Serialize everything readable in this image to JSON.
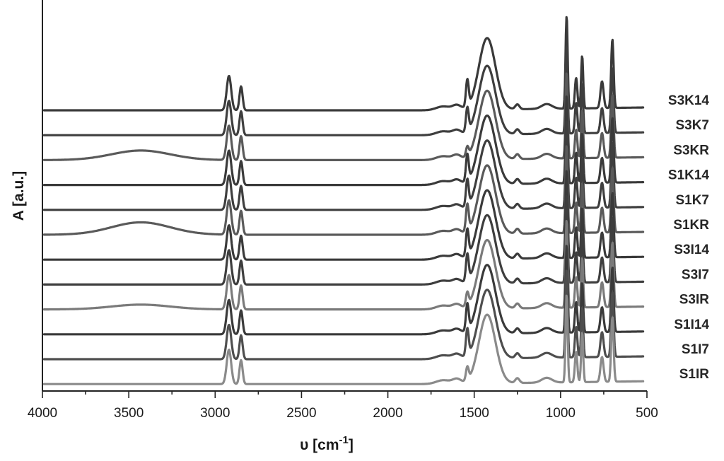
{
  "chart_data": {
    "type": "line",
    "xlabel": "υ [cm",
    "xlabel_sup": "-1",
    "xlabel_suffix": "]",
    "ylabel": "A [a.u.]",
    "xlim": [
      4000,
      500
    ],
    "x_reversed": true,
    "xticks": [
      4000,
      3500,
      3000,
      2500,
      2000,
      1500,
      1000,
      500
    ],
    "xtick_labels": [
      "4000",
      "3500",
      "3000",
      "2500",
      "2000",
      "1500",
      "1000",
      "500"
    ],
    "y_ticks_shown": false,
    "grid": false,
    "legend": "series labels at right end of each trace",
    "peaks_cm-1": [
      2920,
      2850,
      1540,
      1425,
      965,
      910,
      875,
      760,
      700
    ],
    "series": [
      {
        "name": "S3K14",
        "color": "#3a3a3a",
        "peak_intensities": [
          0.36,
          0.25,
          0.28,
          0.75,
          0.97,
          0.32,
          0.55,
          0.28,
          0.72
        ],
        "broad_3400": 0.0
      },
      {
        "name": "S3K7",
        "color": "#3e3e3e",
        "peak_intensities": [
          0.36,
          0.25,
          0.25,
          0.72,
          0.92,
          0.32,
          0.52,
          0.26,
          0.68
        ],
        "broad_3400": 0.0
      },
      {
        "name": "S3KR",
        "color": "#5a5a5a",
        "peak_intensities": [
          0.36,
          0.25,
          0.1,
          0.72,
          0.9,
          0.3,
          0.5,
          0.26,
          0.66
        ],
        "broad_3400": 0.1
      },
      {
        "name": "S1K14",
        "color": "#3a3a3a",
        "peak_intensities": [
          0.36,
          0.25,
          0.28,
          0.72,
          0.92,
          0.32,
          0.52,
          0.26,
          0.68
        ],
        "broad_3400": 0.0
      },
      {
        "name": "S1K7",
        "color": "#3e3e3e",
        "peak_intensities": [
          0.36,
          0.25,
          0.28,
          0.72,
          0.92,
          0.32,
          0.52,
          0.26,
          0.68
        ],
        "broad_3400": 0.0
      },
      {
        "name": "S1KR",
        "color": "#5a5a5a",
        "peak_intensities": [
          0.36,
          0.25,
          0.28,
          0.72,
          0.92,
          0.32,
          0.52,
          0.26,
          0.68
        ],
        "broad_3400": 0.13
      },
      {
        "name": "S3I14",
        "color": "#3a3a3a",
        "peak_intensities": [
          0.36,
          0.25,
          0.28,
          0.72,
          0.92,
          0.32,
          0.52,
          0.26,
          0.68
        ],
        "broad_3400": 0.0
      },
      {
        "name": "S3I7",
        "color": "#3e3e3e",
        "peak_intensities": [
          0.36,
          0.25,
          0.28,
          0.72,
          0.92,
          0.32,
          0.52,
          0.26,
          0.68
        ],
        "broad_3400": 0.0
      },
      {
        "name": "S3IR",
        "color": "#7a7a7a",
        "peak_intensities": [
          0.36,
          0.25,
          0.14,
          0.72,
          0.92,
          0.32,
          0.52,
          0.26,
          0.68
        ],
        "broad_3400": 0.05
      },
      {
        "name": "S1I14",
        "color": "#3a3a3a",
        "peak_intensities": [
          0.36,
          0.25,
          0.28,
          0.72,
          0.92,
          0.32,
          0.52,
          0.26,
          0.68
        ],
        "broad_3400": 0.0
      },
      {
        "name": "S1I7",
        "color": "#4e4e4e",
        "peak_intensities": [
          0.36,
          0.25,
          0.28,
          0.72,
          0.92,
          0.32,
          0.52,
          0.26,
          0.68
        ],
        "broad_3400": 0.0
      },
      {
        "name": "S1IR",
        "color": "#8a8a8a",
        "peak_intensities": [
          0.36,
          0.25,
          0.14,
          0.72,
          0.92,
          0.32,
          0.52,
          0.26,
          0.68
        ],
        "broad_3400": 0.0
      }
    ]
  }
}
